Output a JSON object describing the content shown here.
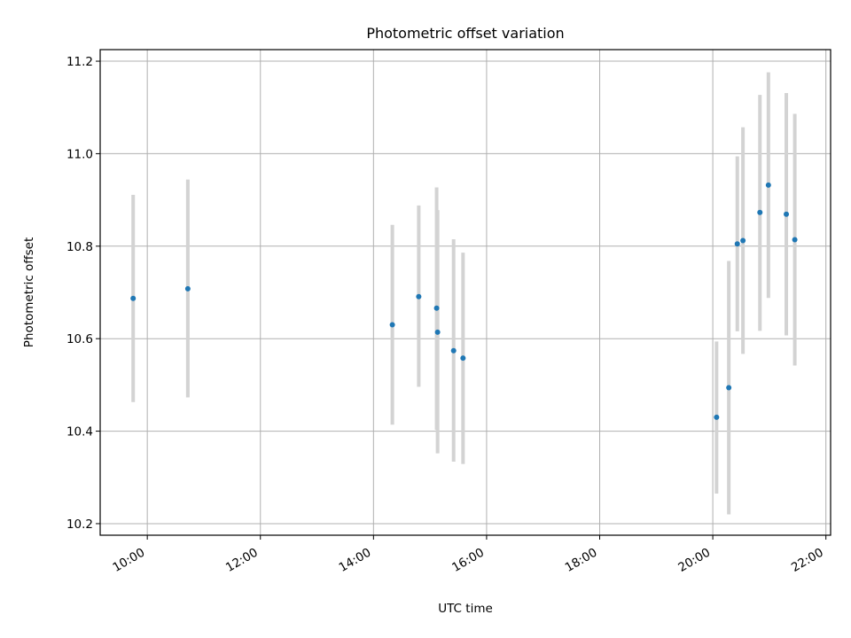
{
  "chart_data": {
    "type": "scatter",
    "title": "Photometric offset variation",
    "xlabel": "UTC time",
    "ylabel": "Photometric offset",
    "x_tick_labels": [
      "10:00",
      "12:00",
      "14:00",
      "16:00",
      "18:00",
      "20:00",
      "22:00"
    ],
    "y_tick_labels": [
      "10.2",
      "10.4",
      "10.6",
      "10.8",
      "11.0",
      "11.2"
    ],
    "xlim": [
      "09:10",
      "22:05"
    ],
    "ylim": [
      10.175,
      11.225
    ],
    "grid": true,
    "colors": {
      "point": "#1f77b4",
      "errorbar": "#d3d3d3",
      "grid": "#b0b0b0"
    },
    "series": [
      {
        "points": [
          {
            "x": "09:45",
            "y": 10.687,
            "ylow": 10.463,
            "yhigh": 10.911
          },
          {
            "x": "10:43",
            "y": 10.708,
            "ylow": 10.473,
            "yhigh": 10.944
          },
          {
            "x": "14:20",
            "y": 10.63,
            "ylow": 10.414,
            "yhigh": 10.846
          },
          {
            "x": "14:48",
            "y": 10.691,
            "ylow": 10.496,
            "yhigh": 10.888
          },
          {
            "x": "15:07",
            "y": 10.666,
            "ylow": 10.403,
            "yhigh": 10.927
          },
          {
            "x": "15:08",
            "y": 10.614,
            "ylow": 10.352,
            "yhigh": 10.878
          },
          {
            "x": "15:25",
            "y": 10.574,
            "ylow": 10.334,
            "yhigh": 10.815
          },
          {
            "x": "15:35",
            "y": 10.558,
            "ylow": 10.329,
            "yhigh": 10.786
          },
          {
            "x": "20:04",
            "y": 10.43,
            "ylow": 10.265,
            "yhigh": 10.594
          },
          {
            "x": "20:17",
            "y": 10.494,
            "ylow": 10.22,
            "yhigh": 10.768
          },
          {
            "x": "20:26",
            "y": 10.805,
            "ylow": 10.616,
            "yhigh": 10.994
          },
          {
            "x": "20:32",
            "y": 10.812,
            "ylow": 10.567,
            "yhigh": 11.057
          },
          {
            "x": "20:50",
            "y": 10.873,
            "ylow": 10.617,
            "yhigh": 11.127
          },
          {
            "x": "20:59",
            "y": 10.932,
            "ylow": 10.688,
            "yhigh": 11.176
          },
          {
            "x": "21:18",
            "y": 10.869,
            "ylow": 10.607,
            "yhigh": 11.131
          },
          {
            "x": "21:27",
            "y": 10.814,
            "ylow": 10.542,
            "yhigh": 11.086
          }
        ]
      }
    ]
  }
}
